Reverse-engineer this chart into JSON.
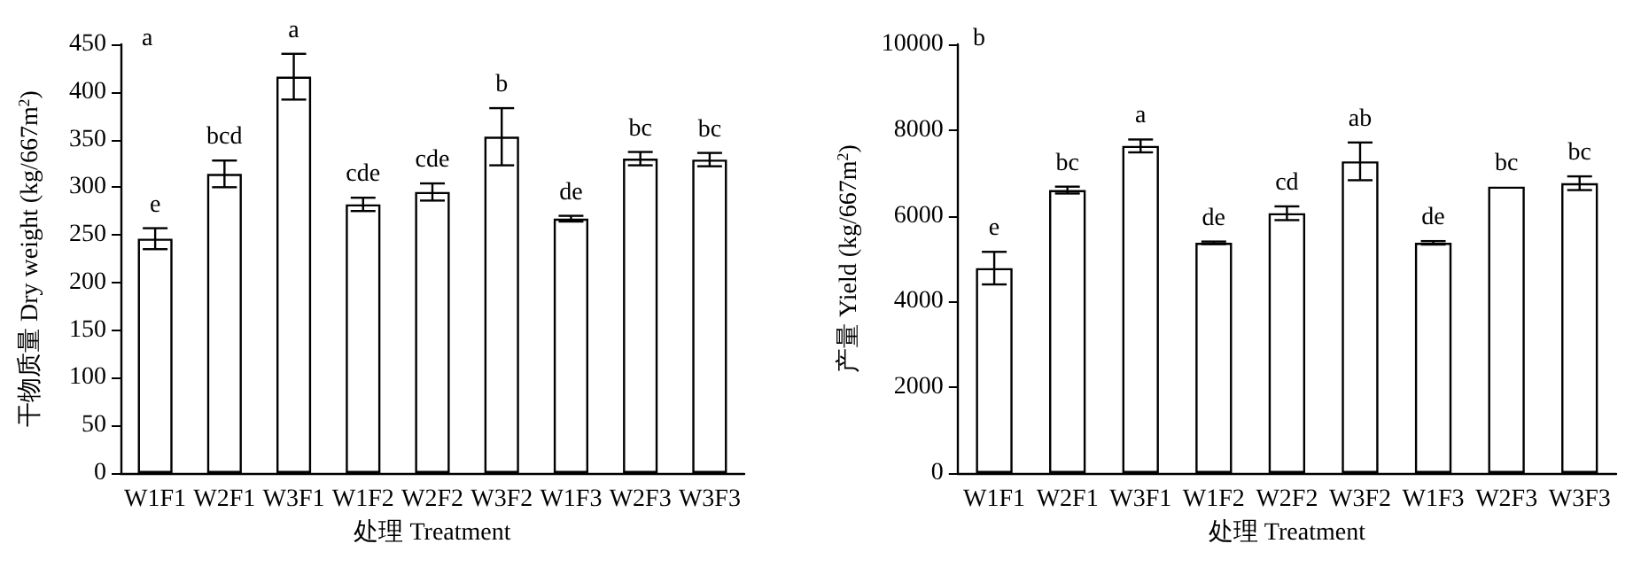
{
  "chart_data": [
    {
      "type": "bar",
      "xlabel": "处理 Treatment",
      "ylabel": "干物质量 Dry weight (kg/667m$^{2}$)",
      "categories": [
        "W1F1",
        "W2F1",
        "W3F1",
        "W1F2",
        "W2F2",
        "W3F2",
        "W1F3",
        "W2F3",
        "W3F3"
      ],
      "values": [
        246,
        314,
        416,
        282,
        295,
        353,
        267,
        330,
        329
      ],
      "color": "#ffffff",
      "errors": [
        11,
        14,
        24,
        7,
        9,
        30,
        3,
        7,
        7
      ],
      "ylim": [
        0,
        450
      ],
      "yticks": [
        0,
        50,
        100,
        150,
        200,
        250,
        300,
        350,
        400,
        450
      ],
      "grid": false,
      "annotations": [
        "a",
        {
          "text": "e",
          "x": "W1F1",
          "y": 257
        },
        {
          "text": "bcd",
          "x": "W2F1",
          "y": 328
        },
        {
          "text": "a",
          "x": "W3F1",
          "y": 440
        },
        {
          "text": "cde",
          "x": "W1F2",
          "y": 289
        },
        {
          "text": "cde",
          "x": "W2F2",
          "y": 304
        },
        {
          "text": "b",
          "x": "W3F2",
          "y": 383
        },
        {
          "text": "de",
          "x": "W1F3",
          "y": 270
        },
        {
          "text": "bc",
          "x": "W2F3",
          "y": 337
        },
        {
          "text": "bc",
          "x": "W3F3",
          "y": 336
        }
      ]
    },
    {
      "type": "bar",
      "xlabel": "处理 Treatment",
      "ylabel": "产量 Yield (kg/667m$^{2}$)",
      "categories": [
        "W1F1",
        "W2F1",
        "W3F1",
        "W1F2",
        "W2F2",
        "W3F2",
        "W1F3",
        "W2F3",
        "W3F3"
      ],
      "values": [
        4780,
        6600,
        7630,
        5370,
        6060,
        7270,
        5370,
        6680,
        6760
      ],
      "color": "#ffffff",
      "errors": [
        380,
        80,
        150,
        30,
        160,
        440,
        40,
        null,
        160
      ],
      "ylim": [
        0,
        10000
      ],
      "yticks": [
        0,
        2000,
        4000,
        6000,
        8000,
        10000
      ],
      "grid": false,
      "annotations": [
        "b",
        {
          "text": "e",
          "x": "W1F1",
          "y": 5160
        },
        {
          "text": "bc",
          "x": "W2F1",
          "y": 6680
        },
        {
          "text": "a",
          "x": "W3F1",
          "y": 7780
        },
        {
          "text": "de",
          "x": "W1F2",
          "y": 5400
        },
        {
          "text": "cd",
          "x": "W2F2",
          "y": 6220
        },
        {
          "text": "ab",
          "x": "W3F2",
          "y": 7710
        },
        {
          "text": "de",
          "x": "W1F3",
          "y": 5410
        },
        {
          "text": "bc",
          "x": "W2F3",
          "y": 6680
        },
        {
          "text": "bc",
          "x": "W3F3",
          "y": 6920
        }
      ]
    }
  ]
}
